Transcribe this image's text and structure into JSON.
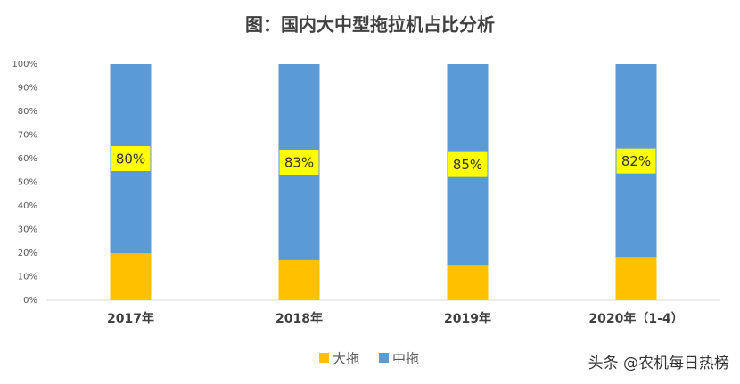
{
  "chart_data": {
    "type": "stacked_bar",
    "title": "图：国内大中型拖拉机占比分析",
    "categories": [
      "2017年",
      "2018年",
      "2019年",
      "2020年（1-4）"
    ],
    "series": [
      {
        "name": "大拖",
        "color": "#FFC000",
        "values": [
          20,
          17,
          15,
          18
        ]
      },
      {
        "name": "中拖",
        "color": "#5B9BD5",
        "values": [
          80,
          83,
          85,
          82
        ],
        "value_labels": [
          "80%",
          "83%",
          "85%",
          "82%"
        ]
      }
    ],
    "ylim": [
      0,
      100
    ],
    "yticks": [
      {
        "value": 0,
        "label": "0%"
      },
      {
        "value": 10,
        "label": "10%"
      },
      {
        "value": 20,
        "label": "20%"
      },
      {
        "value": 30,
        "label": "30%"
      },
      {
        "value": 40,
        "label": "40%"
      },
      {
        "value": 50,
        "label": "50%"
      },
      {
        "value": 60,
        "label": "60%"
      },
      {
        "value": 70,
        "label": "70%"
      },
      {
        "value": 80,
        "label": "80%"
      },
      {
        "value": 90,
        "label": "90%"
      },
      {
        "value": 100,
        "label": "100%"
      }
    ],
    "legend": "bottom",
    "grid": false
  },
  "watermark": "头条 @农机每日热榜"
}
